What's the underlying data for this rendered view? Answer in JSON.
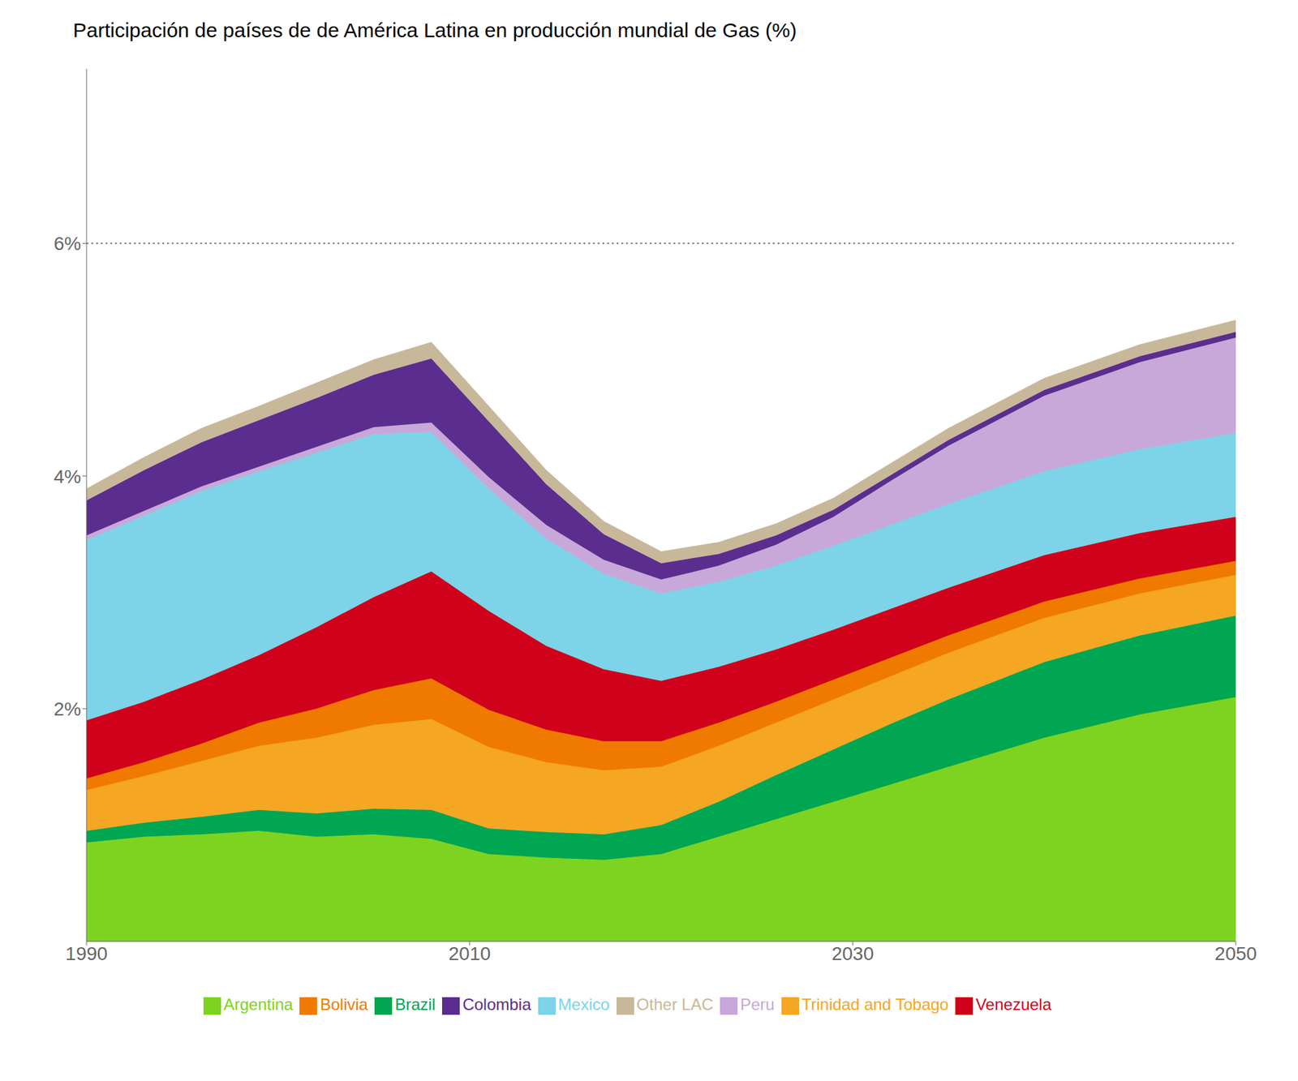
{
  "chart_data": {
    "type": "area",
    "title": "Participación de países de de América Latina en producción mundial de Gas (%)",
    "x": [
      1990,
      1993,
      1996,
      1999,
      2002,
      2005,
      2008,
      2011,
      2014,
      2017,
      2020,
      2023,
      2026,
      2029,
      2032,
      2035,
      2040,
      2045,
      2050
    ],
    "series": [
      {
        "name": "Argentina",
        "color": "#7ED321",
        "values": [
          0.85,
          0.9,
          0.92,
          0.95,
          0.9,
          0.92,
          0.88,
          0.75,
          0.72,
          0.7,
          0.75,
          0.9,
          1.05,
          1.2,
          1.35,
          1.5,
          1.75,
          1.95,
          2.1
        ]
      },
      {
        "name": "Brazil",
        "color": "#00A651",
        "values": [
          0.1,
          0.12,
          0.15,
          0.18,
          0.2,
          0.22,
          0.25,
          0.22,
          0.22,
          0.22,
          0.25,
          0.3,
          0.38,
          0.45,
          0.52,
          0.58,
          0.65,
          0.68,
          0.7
        ]
      },
      {
        "name": "Trinidad and Tobago",
        "color": "#F5A623",
        "values": [
          0.35,
          0.4,
          0.48,
          0.55,
          0.65,
          0.72,
          0.78,
          0.7,
          0.6,
          0.55,
          0.5,
          0.48,
          0.45,
          0.43,
          0.41,
          0.4,
          0.38,
          0.36,
          0.35
        ]
      },
      {
        "name": "Bolivia",
        "color": "#F07A00",
        "values": [
          0.1,
          0.12,
          0.15,
          0.2,
          0.25,
          0.3,
          0.35,
          0.32,
          0.28,
          0.25,
          0.22,
          0.2,
          0.18,
          0.17,
          0.16,
          0.15,
          0.14,
          0.13,
          0.12
        ]
      },
      {
        "name": "Venezuela",
        "color": "#D0021B",
        "values": [
          0.5,
          0.52,
          0.55,
          0.58,
          0.7,
          0.8,
          0.92,
          0.85,
          0.72,
          0.62,
          0.52,
          0.48,
          0.45,
          0.43,
          0.42,
          0.41,
          0.4,
          0.39,
          0.38
        ]
      },
      {
        "name": "Mexico",
        "color": "#7DD3E8",
        "values": [
          1.55,
          1.6,
          1.62,
          1.58,
          1.5,
          1.4,
          1.2,
          1.05,
          0.92,
          0.82,
          0.75,
          0.73,
          0.72,
          0.72,
          0.72,
          0.72,
          0.72,
          0.72,
          0.72
        ]
      },
      {
        "name": "Peru",
        "color": "#C8A8D8",
        "values": [
          0.04,
          0.04,
          0.04,
          0.04,
          0.05,
          0.06,
          0.08,
          0.1,
          0.12,
          0.12,
          0.12,
          0.14,
          0.18,
          0.25,
          0.38,
          0.5,
          0.65,
          0.75,
          0.82
        ]
      },
      {
        "name": "Colombia",
        "color": "#5B2D8E",
        "values": [
          0.3,
          0.35,
          0.38,
          0.4,
          0.42,
          0.45,
          0.55,
          0.48,
          0.35,
          0.22,
          0.14,
          0.1,
          0.08,
          0.06,
          0.05,
          0.05,
          0.05,
          0.05,
          0.05
        ]
      },
      {
        "name": "Other LAC",
        "color": "#C8B89A",
        "values": [
          0.1,
          0.11,
          0.12,
          0.12,
          0.13,
          0.13,
          0.14,
          0.13,
          0.12,
          0.11,
          0.1,
          0.1,
          0.1,
          0.1,
          0.1,
          0.1,
          0.1,
          0.1,
          0.1
        ]
      }
    ],
    "xlim": [
      1990,
      2050
    ],
    "xticks": [
      1990,
      2010,
      2030,
      2050
    ],
    "ylim": [
      0,
      7.5
    ],
    "yticks": [
      {
        "value": 2,
        "label": "2%"
      },
      {
        "value": 4,
        "label": "4%"
      },
      {
        "value": 6,
        "label": "6%"
      }
    ],
    "hline": 6.0,
    "stacked": true,
    "grid": false,
    "legend": "bottom"
  }
}
